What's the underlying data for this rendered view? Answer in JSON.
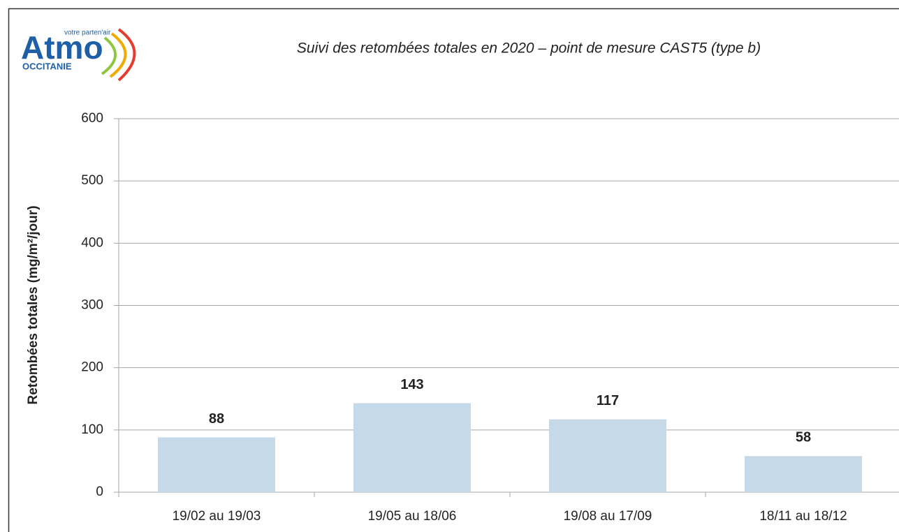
{
  "logo": {
    "name": "Atmo",
    "tagline": "votre parten'air",
    "region": "OCCITANIE"
  },
  "chart_data": {
    "type": "bar",
    "title": "Suivi des retombées totales en 2020 – point de mesure CAST5 (type b)",
    "y_label": "Retombées totales (mg/m²/jour)",
    "categories": [
      "19/02 au 19/03",
      "19/05 au 18/06",
      "19/08 au 17/09",
      "18/11 au 18/12"
    ],
    "values": [
      88,
      143,
      117,
      58
    ],
    "color": "#c6d9e8",
    "ylim": [
      0,
      600
    ],
    "yticks": [
      0,
      100,
      200,
      300,
      400,
      500,
      600
    ],
    "grid": true
  }
}
